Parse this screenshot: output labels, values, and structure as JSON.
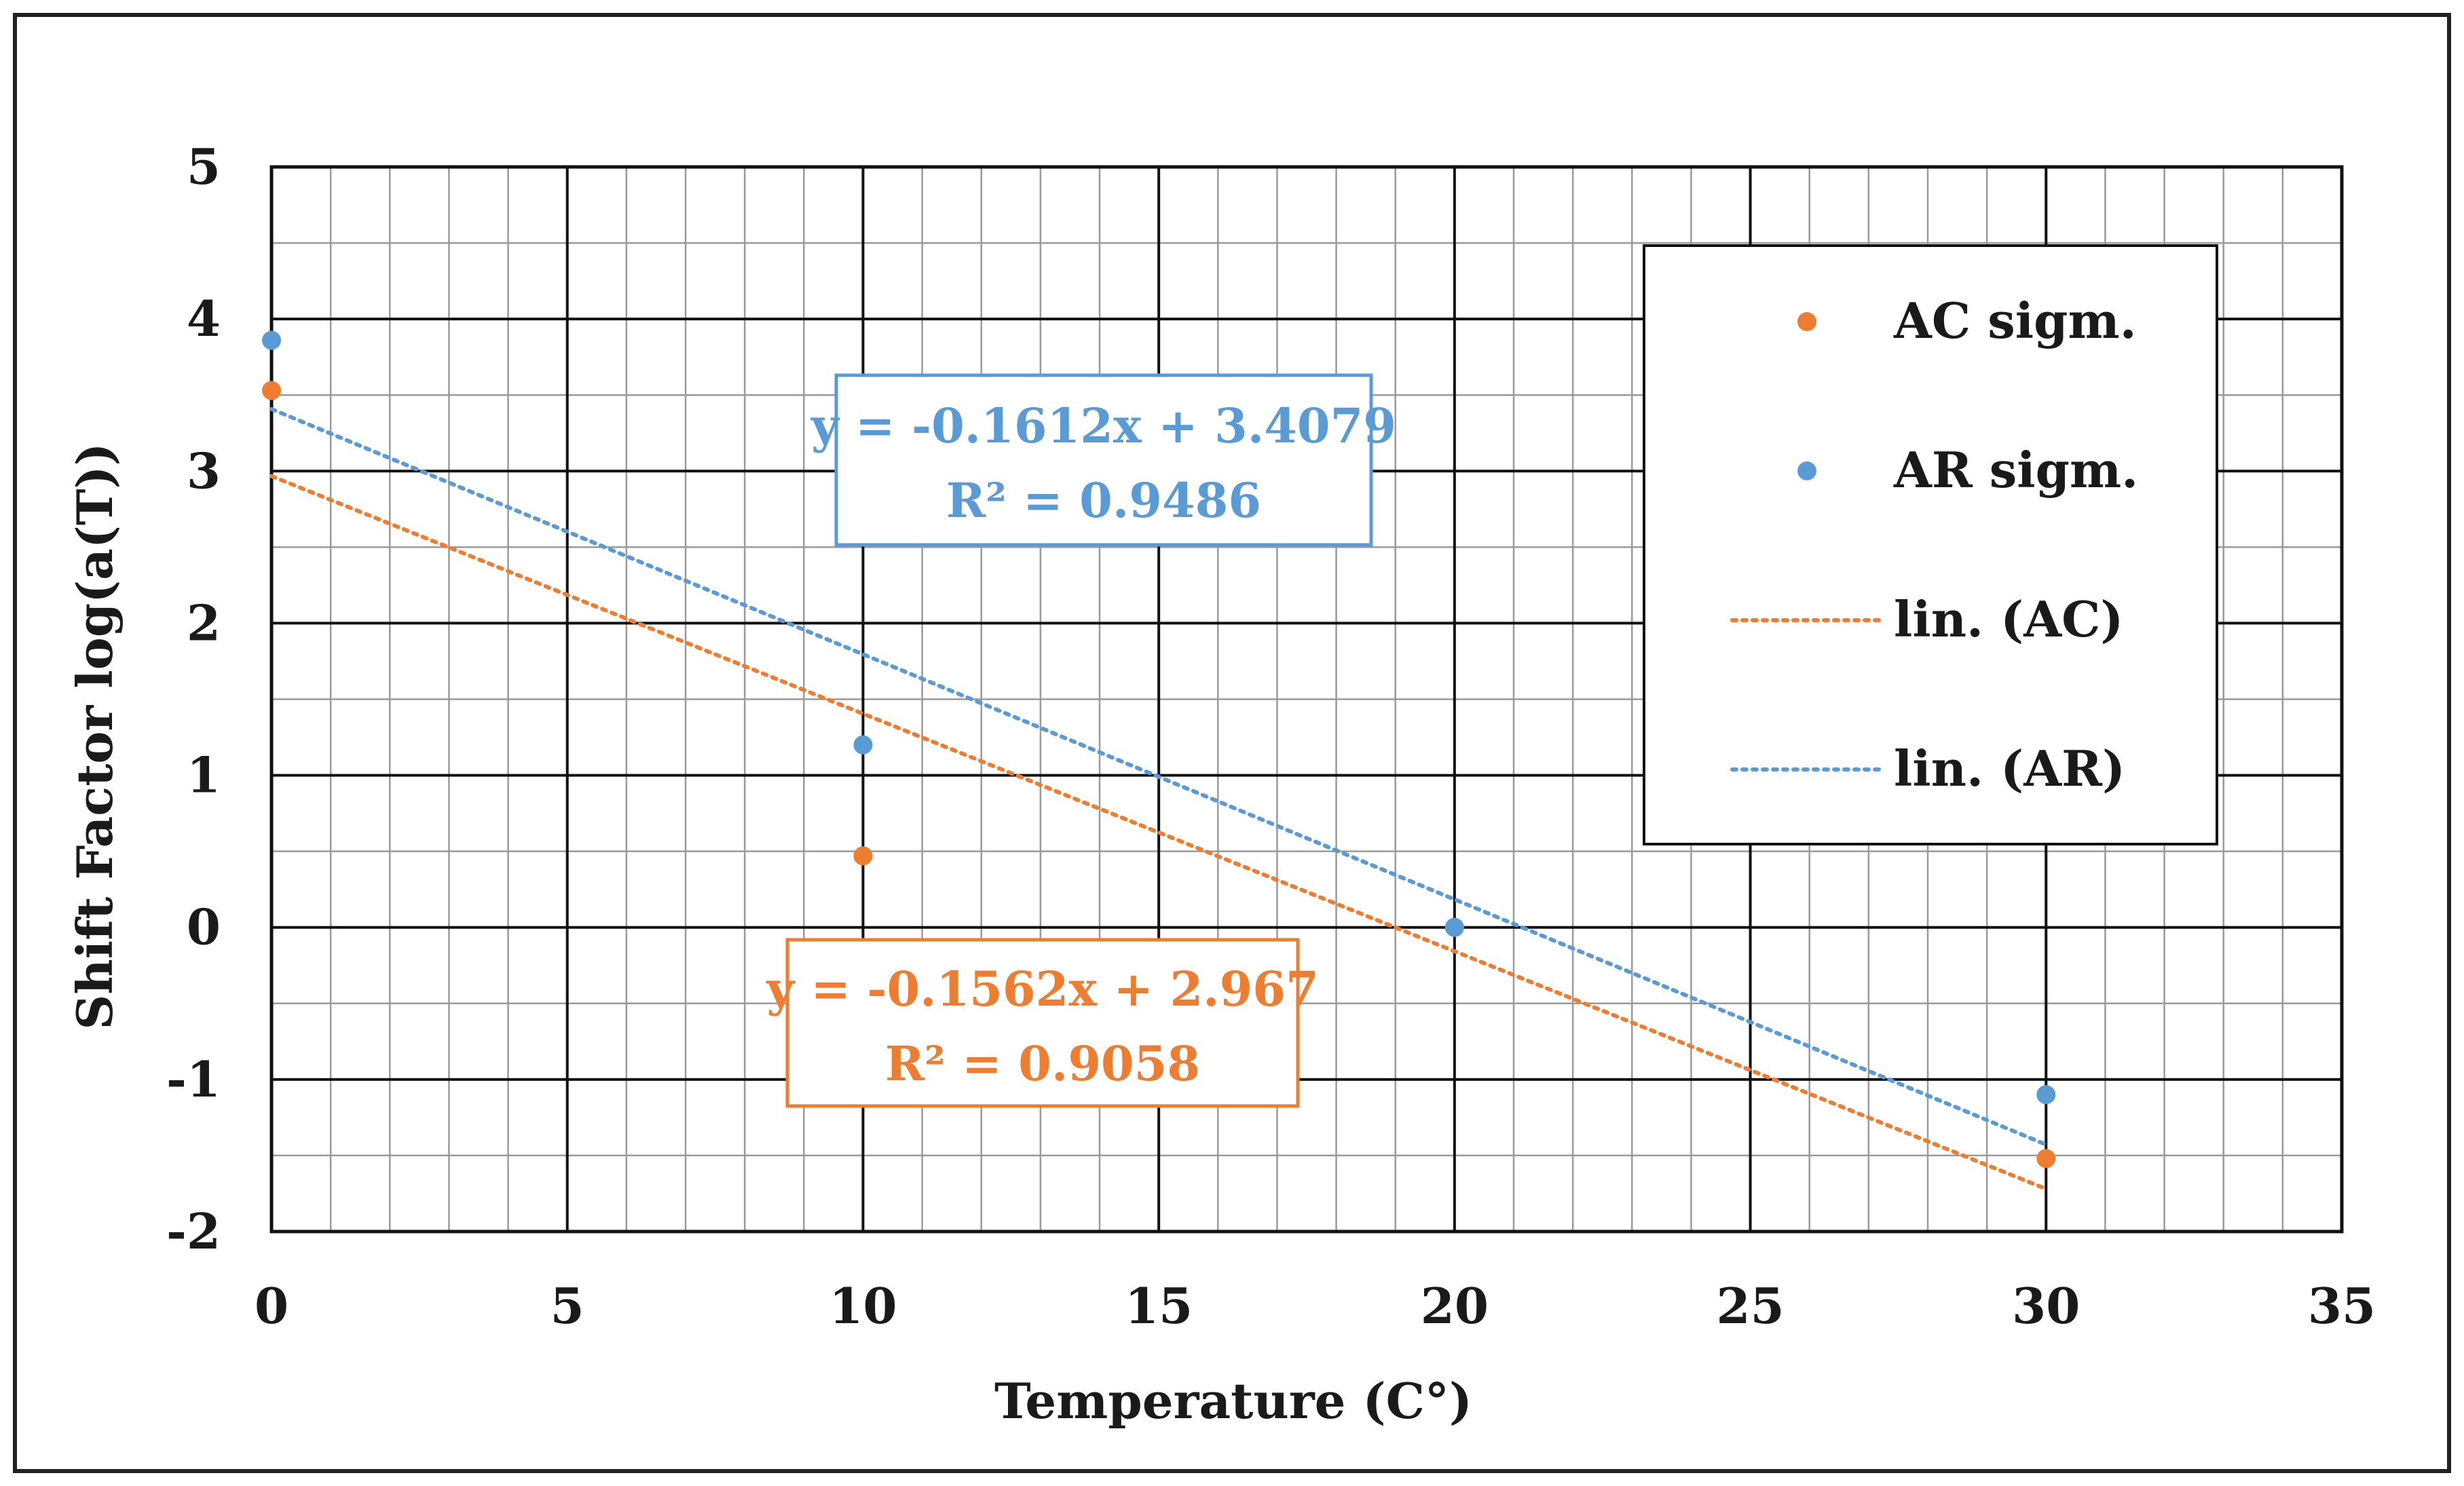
{
  "chart_data": {
    "type": "scatter",
    "title": "",
    "xlabel": "Temperature  (C°)",
    "ylabel": "Shift Factor  log(a(T))",
    "xlim": [
      0,
      35
    ],
    "ylim": [
      -2,
      5
    ],
    "x_ticks": [
      0,
      5,
      10,
      15,
      20,
      25,
      30,
      35
    ],
    "y_ticks": [
      -2,
      -1,
      0,
      1,
      2,
      3,
      4,
      5
    ],
    "x_tick_labels": [
      "0",
      "5",
      "10",
      "15",
      "20",
      "25",
      "30",
      "35"
    ],
    "y_tick_labels": [
      "-2",
      "-1",
      "0",
      "1",
      "2",
      "3",
      "4",
      "5"
    ],
    "minor_x_step": 1,
    "minor_y_step": 0.5,
    "grid": true,
    "legend_position": "top-right",
    "series": [
      {
        "name": "AC sigm.",
        "color": "#ED7D31",
        "x": [
          0,
          10,
          20,
          30
        ],
        "y": [
          3.53,
          0.47,
          0.0,
          -1.52
        ]
      },
      {
        "name": "AR sigm.",
        "color": "#5B9BD5",
        "x": [
          0,
          10,
          20,
          30
        ],
        "y": [
          3.86,
          1.2,
          0.0,
          -1.1
        ]
      }
    ],
    "trendlines": [
      {
        "name": "lin. (AC)",
        "color": "#ED7D31",
        "slope": -0.1562,
        "intercept": 2.967,
        "x_range": [
          0,
          30
        ],
        "equation": "y = -0.1562x + 2.967",
        "r2": "R² = 0.9058"
      },
      {
        "name": "lin. (AR)",
        "color": "#5B9BD5",
        "slope": -0.1612,
        "intercept": 3.4079,
        "x_range": [
          0,
          30
        ],
        "equation": "y = -0.1612x + 3.4079",
        "r2": "R² = 0.9486"
      }
    ],
    "legend": [
      {
        "label": "AC sigm.",
        "kind": "marker",
        "color": "#ED7D31"
      },
      {
        "label": "AR sigm.",
        "kind": "marker",
        "color": "#5B9BD5"
      },
      {
        "label": "lin. (AC)",
        "kind": "line",
        "color": "#ED7D31"
      },
      {
        "label": "lin. (AR)",
        "kind": "line",
        "color": "#5B9BD5"
      }
    ]
  }
}
